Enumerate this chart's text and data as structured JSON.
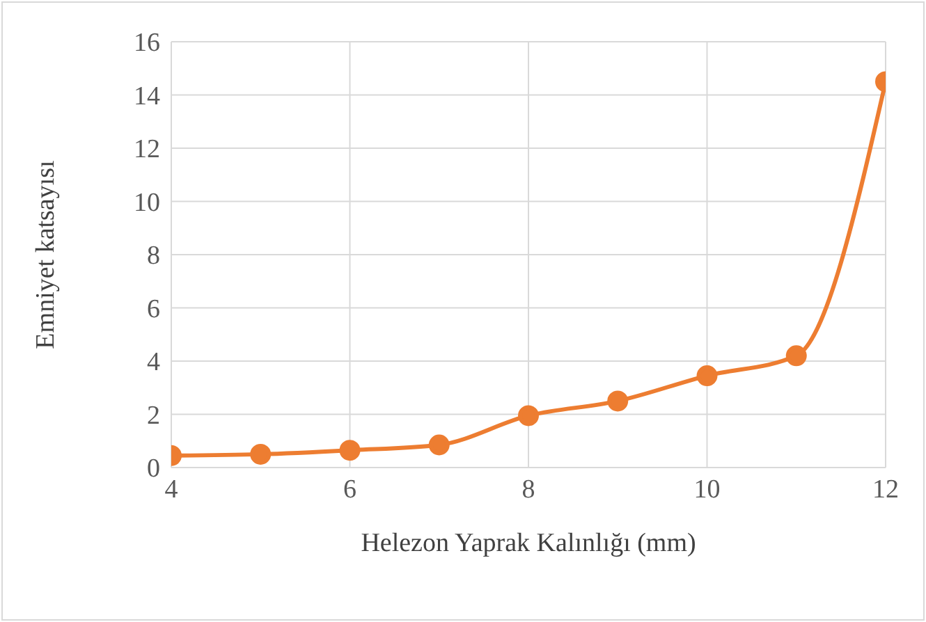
{
  "chart_data": {
    "type": "line",
    "xlabel": "Helezon Yaprak Kalınlığı (mm)",
    "ylabel": "Emniyet katsayısı",
    "x": [
      4,
      5,
      6,
      7,
      8,
      9,
      10,
      11,
      12
    ],
    "series": [
      {
        "color": "#ed7d31",
        "values": [
          0.45,
          0.5,
          0.65,
          0.85,
          1.95,
          2.5,
          3.45,
          4.2,
          14.5
        ]
      }
    ],
    "xlim": [
      4,
      12
    ],
    "xticks": [
      4,
      6,
      8,
      10,
      12
    ],
    "ylim": [
      0,
      16
    ],
    "yticks": [
      0,
      2,
      4,
      6,
      8,
      10,
      12,
      14,
      16
    ],
    "grid": true,
    "marker": "circle"
  }
}
